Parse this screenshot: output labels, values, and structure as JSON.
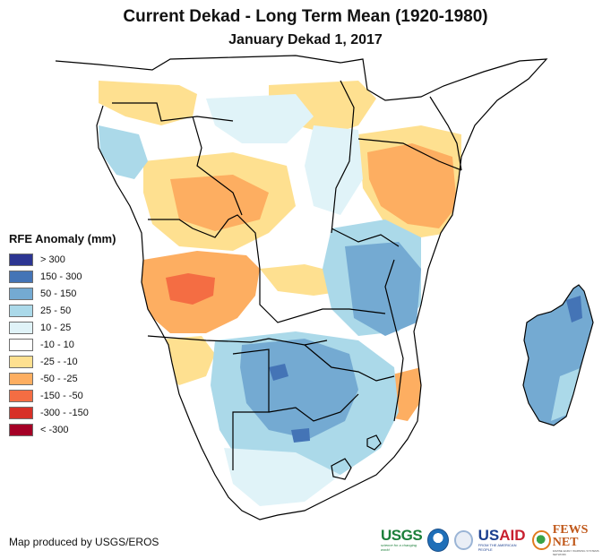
{
  "title": "Current Dekad - Long Term Mean (1920-1980)",
  "subtitle": "January Dekad 1, 2017",
  "legend": {
    "title": "RFE Anomaly (mm)",
    "items": [
      {
        "label": "> 300",
        "color": "#2c3592"
      },
      {
        "label": "150 - 300",
        "color": "#4474b6"
      },
      {
        "label": "50 - 150",
        "color": "#74aad2"
      },
      {
        "label": "25 - 50",
        "color": "#abd9e9"
      },
      {
        "label": "10 - 25",
        "color": "#e0f3f8"
      },
      {
        "label": "-10 - 10",
        "color": "#ffffff"
      },
      {
        "label": "-25 - -10",
        "color": "#fee090"
      },
      {
        "label": "-50 - -25",
        "color": "#fdae61"
      },
      {
        "label": "-150 - -50",
        "color": "#f46d43"
      },
      {
        "label": "-300 - -150",
        "color": "#d73027"
      },
      {
        "label": "< -300",
        "color": "#a50026"
      }
    ]
  },
  "map": {
    "region": "Southern and Central Africa with Madagascar",
    "variable": "Rainfall estimate anomaly",
    "border_color": "#000000"
  },
  "credit": "Map produced by USGS/EROS",
  "logos": {
    "usgs": {
      "name": "USGS",
      "tagline": "science for a changing world"
    },
    "noaa": {
      "name": "NOAA"
    },
    "usaid": {
      "us": "US",
      "aid": "AID",
      "tagline": "FROM THE AMERICAN PEOPLE"
    },
    "fews": {
      "name": "FEWS NET",
      "tagline": "FAMINE EARLY WARNING SYSTEMS NETWORK"
    }
  }
}
